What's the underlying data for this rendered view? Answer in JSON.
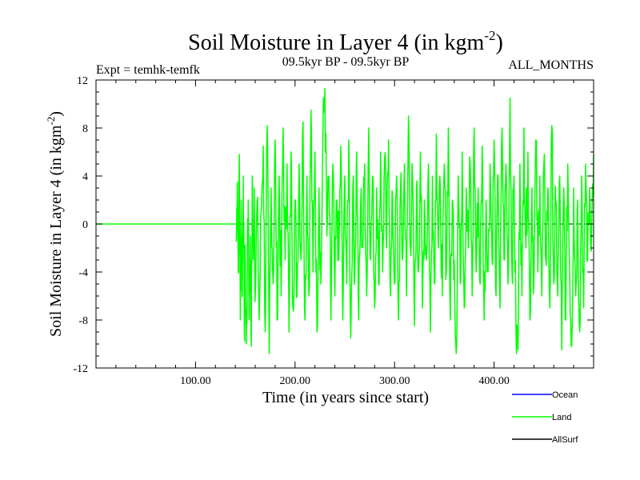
{
  "chart_data": {
    "type": "line",
    "title": "Soil Moisture in Layer 4 (in kgm",
    "title_sup": "-2",
    "title_close": ")",
    "subtitle_left": "Expt = temhk-temfk",
    "subtitle_center": "09.5kyr BP - 09.5kyr BP",
    "subtitle_right": "ALL_MONTHS",
    "xlabel": "Time (in years since start)",
    "ylabel": "Soil Moisture in Layer 4 (in kgm",
    "ylabel_sup": "-2",
    "ylabel_close": ")",
    "xlim": [
      0,
      500
    ],
    "ylim": [
      -12,
      12
    ],
    "xticks": [
      100,
      200,
      300,
      400
    ],
    "xtick_labels": [
      "100.00",
      "200.00",
      "300.00",
      "400.00"
    ],
    "yticks": [
      -12,
      -8,
      -4,
      0,
      4,
      8,
      12
    ],
    "ytick_labels": [
      "-12",
      "-8",
      "-4",
      "0",
      "4",
      "8",
      "12"
    ],
    "zero_line": "dashed",
    "series": [
      {
        "name": "Land",
        "color": "#00ff00",
        "flat_until": 141,
        "flat_value": 0,
        "start_year": 141,
        "end_year": 500,
        "anchors": [
          [
            141,
            -1.5
          ],
          [
            142,
            3.5
          ],
          [
            143,
            -4
          ],
          [
            144,
            5.8
          ],
          [
            145,
            -8
          ],
          [
            146,
            2
          ],
          [
            147,
            -6
          ],
          [
            148,
            4
          ],
          [
            149,
            -9
          ],
          [
            150,
            -3
          ],
          [
            151,
            -10
          ],
          [
            152,
            -4
          ],
          [
            153,
            2
          ],
          [
            154,
            -8
          ],
          [
            155,
            -1
          ],
          [
            156,
            -10.2
          ],
          [
            157,
            4
          ],
          [
            158,
            -3
          ],
          [
            159,
            3
          ],
          [
            160,
            -6
          ],
          [
            162,
            2
          ],
          [
            164,
            -8
          ],
          [
            166,
            1
          ],
          [
            168,
            6.5
          ],
          [
            170,
            -9
          ],
          [
            172,
            8.2
          ],
          [
            174,
            -10.8
          ],
          [
            176,
            3
          ],
          [
            178,
            -5
          ],
          [
            180,
            7
          ],
          [
            182,
            -8
          ],
          [
            184,
            4
          ],
          [
            186,
            -6
          ],
          [
            188,
            8
          ],
          [
            190,
            -3
          ],
          [
            192,
            5
          ],
          [
            194,
            -9
          ],
          [
            196,
            6
          ],
          [
            198,
            -7
          ],
          [
            200,
            2
          ],
          [
            202,
            -6
          ],
          [
            204,
            5
          ],
          [
            206,
            -3
          ],
          [
            208,
            8.5
          ],
          [
            210,
            -8
          ],
          [
            212,
            4
          ],
          [
            214,
            -6
          ],
          [
            216,
            9.5
          ],
          [
            218,
            -4
          ],
          [
            220,
            6
          ],
          [
            222,
            -9
          ],
          [
            224,
            3
          ],
          [
            226,
            -5
          ],
          [
            228,
            7
          ],
          [
            230,
            11.3
          ],
          [
            232,
            -1
          ],
          [
            234,
            4
          ],
          [
            236,
            -8
          ],
          [
            238,
            5
          ],
          [
            240,
            -6
          ],
          [
            242,
            2
          ],
          [
            244,
            -3
          ],
          [
            246,
            6.5
          ],
          [
            248,
            -8
          ],
          [
            250,
            4
          ],
          [
            252,
            -5
          ],
          [
            254,
            7
          ],
          [
            256,
            -9.5
          ],
          [
            258,
            3
          ],
          [
            260,
            -4
          ],
          [
            262,
            6
          ],
          [
            264,
            -8
          ],
          [
            266,
            2
          ],
          [
            268,
            -2
          ],
          [
            270,
            5
          ],
          [
            272,
            -6
          ],
          [
            274,
            8
          ],
          [
            276,
            -3
          ],
          [
            278,
            4
          ],
          [
            280,
            -7
          ],
          [
            282,
            3
          ],
          [
            284,
            -5
          ],
          [
            286,
            6
          ],
          [
            288,
            -4
          ],
          [
            290,
            5.5
          ],
          [
            292,
            -2
          ],
          [
            294,
            7
          ],
          [
            296,
            -6
          ],
          [
            298,
            2
          ],
          [
            300,
            -5
          ],
          [
            302,
            4
          ],
          [
            304,
            -8
          ],
          [
            306,
            3
          ],
          [
            308,
            -3
          ],
          [
            310,
            5
          ],
          [
            312,
            -6
          ],
          [
            314,
            9
          ],
          [
            316,
            -2
          ],
          [
            318,
            4
          ],
          [
            320,
            -8.5
          ],
          [
            322,
            3
          ],
          [
            324,
            -4
          ],
          [
            326,
            6
          ],
          [
            328,
            -7
          ],
          [
            330,
            2
          ],
          [
            332,
            -3
          ],
          [
            334,
            5
          ],
          [
            336,
            -9
          ],
          [
            338,
            4
          ],
          [
            340,
            -5
          ],
          [
            342,
            7.5
          ],
          [
            344,
            -2
          ],
          [
            346,
            3
          ],
          [
            348,
            -6
          ],
          [
            350,
            5
          ],
          [
            352,
            -4
          ],
          [
            354,
            8
          ],
          [
            356,
            -8
          ],
          [
            358,
            2
          ],
          [
            360,
            -3
          ],
          [
            362,
            -10.8
          ],
          [
            364,
            4
          ],
          [
            366,
            -5
          ],
          [
            368,
            6
          ],
          [
            370,
            -7
          ],
          [
            372,
            3
          ],
          [
            374,
            -2
          ],
          [
            376,
            5
          ],
          [
            378,
            -6
          ],
          [
            380,
            8
          ],
          [
            382,
            -4
          ],
          [
            384,
            3
          ],
          [
            386,
            -5
          ],
          [
            388,
            6.5
          ],
          [
            390,
            -8
          ],
          [
            392,
            2
          ],
          [
            394,
            -4
          ],
          [
            396,
            5
          ],
          [
            398,
            -3
          ],
          [
            400,
            7
          ],
          [
            402,
            -6
          ],
          [
            404,
            4
          ],
          [
            406,
            -7
          ],
          [
            408,
            8
          ],
          [
            410,
            -3
          ],
          [
            412,
            5
          ],
          [
            414,
            -5
          ],
          [
            416,
            10.5
          ],
          [
            418,
            -4
          ],
          [
            420,
            4
          ],
          [
            422,
            -9
          ],
          [
            424,
            -10.5
          ],
          [
            426,
            5
          ],
          [
            428,
            -6
          ],
          [
            430,
            8
          ],
          [
            432,
            -2
          ],
          [
            434,
            6
          ],
          [
            436,
            -8
          ],
          [
            438,
            3
          ],
          [
            440,
            -5
          ],
          [
            442,
            7
          ],
          [
            444,
            -4
          ],
          [
            446,
            4
          ],
          [
            448,
            -6
          ],
          [
            450,
            5
          ],
          [
            452,
            -3
          ],
          [
            454,
            3
          ],
          [
            456,
            -7
          ],
          [
            458,
            8.2
          ],
          [
            460,
            -5
          ],
          [
            462,
            2
          ],
          [
            464,
            -6
          ],
          [
            466,
            4
          ],
          [
            468,
            -10.5
          ],
          [
            470,
            3
          ],
          [
            472,
            -8
          ],
          [
            474,
            5
          ],
          [
            476,
            -4
          ],
          [
            478,
            -10.2
          ],
          [
            480,
            3
          ],
          [
            482,
            -6
          ],
          [
            484,
            2
          ],
          [
            486,
            -9
          ],
          [
            488,
            4
          ],
          [
            490,
            -7
          ],
          [
            492,
            5
          ],
          [
            494,
            -3
          ],
          [
            496,
            3
          ],
          [
            498,
            -1
          ],
          [
            500,
            5.8
          ]
        ]
      }
    ],
    "legend": [
      {
        "label": "Ocean",
        "color": "#0000ff"
      },
      {
        "label": "Land",
        "color": "#00ff00"
      },
      {
        "label": "AllSurf",
        "color": "#000000"
      }
    ],
    "legend_position": "bottom-right"
  }
}
